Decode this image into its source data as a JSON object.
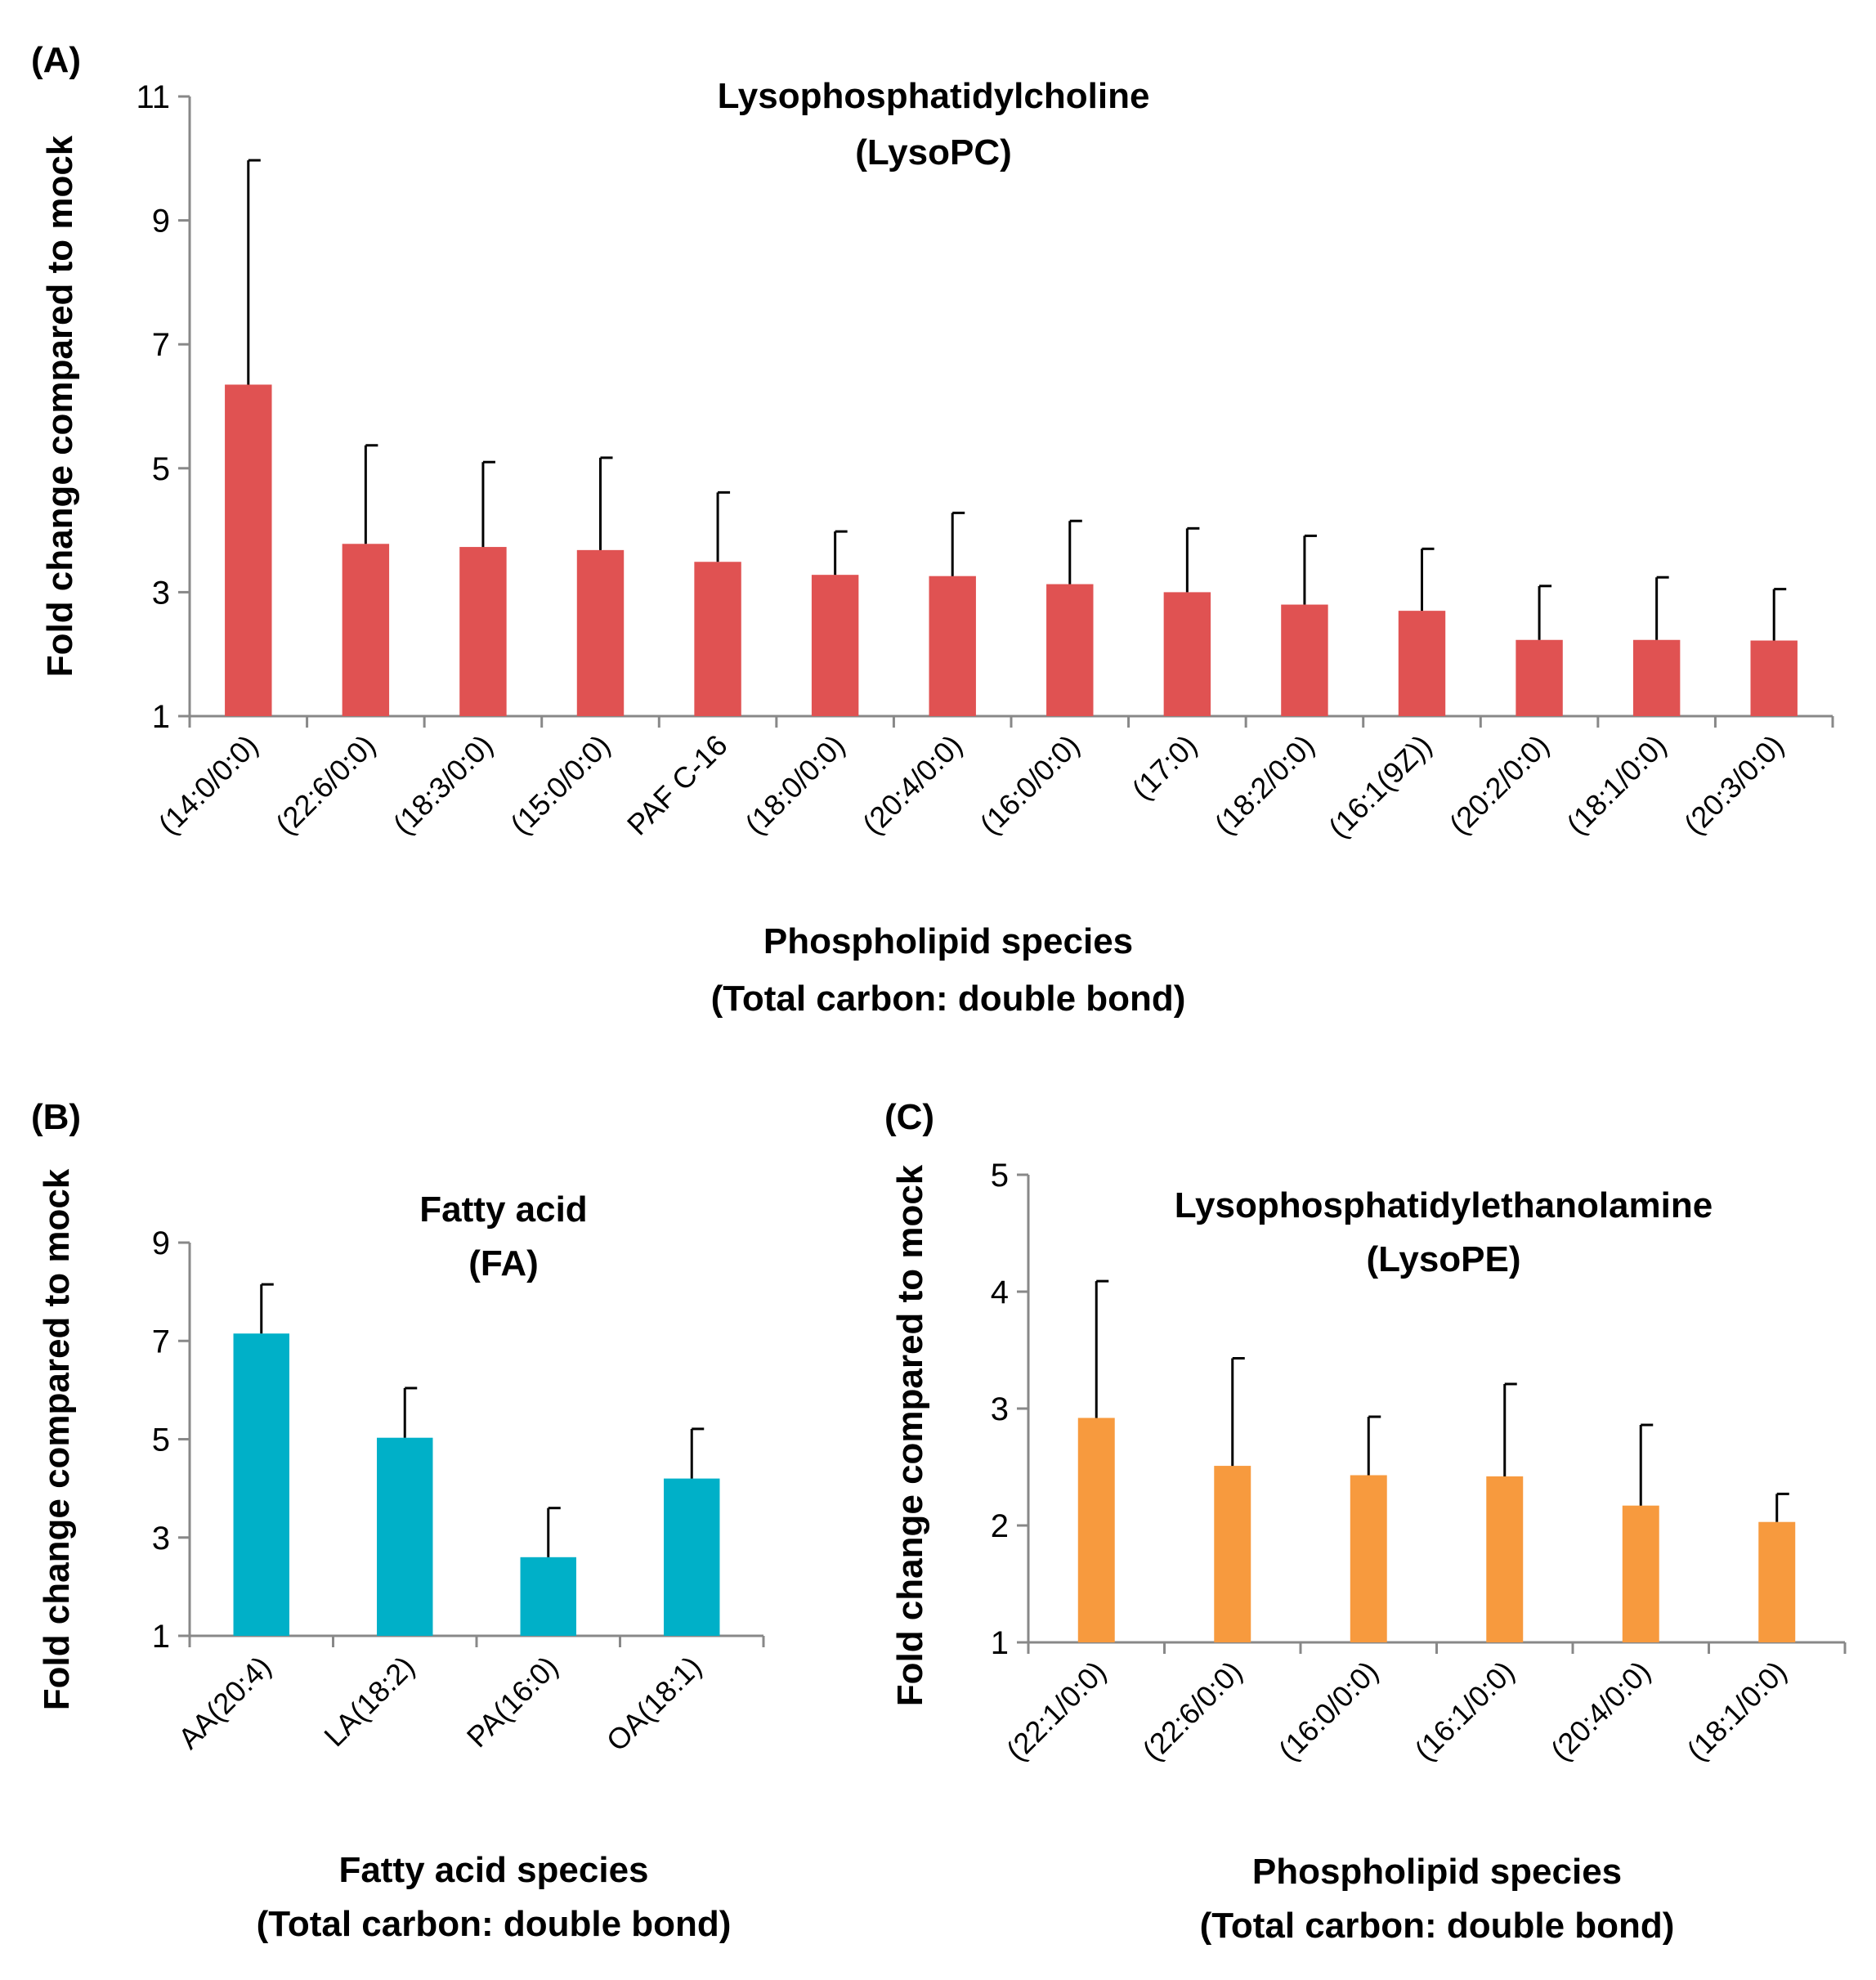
{
  "chart_data": [
    {
      "panel_label": "(A)",
      "type": "bar",
      "title": "Lysophosphatidylcholine",
      "subtitle": "(LysoPC)",
      "xlabel": "Phospholipid species",
      "xlabel_sub": "(Total carbon: double bond)",
      "ylabel": "Fold change compared to mock",
      "ylim": [
        1,
        11
      ],
      "yticks": [
        1,
        3,
        5,
        7,
        9,
        11
      ],
      "color": "#e05252",
      "categories": [
        "(14:0/0:0)",
        "(22:6/0:0)",
        "(18:3/0:0)",
        "(15:0/0:0)",
        "PAF C-16",
        "(18:0/0:0)",
        "(20:4/0:0)",
        "(16:0/0:0)",
        "(17:0)",
        "(18:2/0:0)",
        "(16:1(9Z))",
        "(20:2/0:0)",
        "(18:1/0:0)",
        "(20:3/0:0)"
      ],
      "values": [
        6.35,
        3.78,
        3.73,
        3.68,
        3.49,
        3.28,
        3.26,
        3.13,
        3.0,
        2.8,
        2.7,
        2.23,
        2.23,
        2.22
      ],
      "error_upper": [
        9.97,
        5.37,
        5.1,
        5.17,
        4.61,
        3.98,
        4.28,
        4.15,
        4.03,
        3.91,
        3.7,
        3.1,
        3.24,
        3.05
      ],
      "grid": false,
      "legend": "none"
    },
    {
      "panel_label": "(B)",
      "type": "bar",
      "title": "Fatty acid",
      "subtitle": "(FA)",
      "xlabel": "Fatty acid species",
      "xlabel_sub": "(Total carbon: double bond)",
      "ylabel": "Fold change compared to mock",
      "ylim": [
        1,
        9
      ],
      "yticks": [
        1,
        3,
        5,
        7,
        9
      ],
      "color": "#00b0c8",
      "categories": [
        "AA(20:4)",
        "LA(18:2)",
        "PA(16:0)",
        "OA(18:1)"
      ],
      "values": [
        7.15,
        5.03,
        2.6,
        4.2
      ],
      "error_upper": [
        8.15,
        6.04,
        3.6,
        5.21
      ],
      "grid": false,
      "legend": "none"
    },
    {
      "panel_label": "(C)",
      "type": "bar",
      "title": "Lysophosphatidylethanolamine",
      "subtitle": "(LysoPE)",
      "xlabel": "Phospholipid species",
      "xlabel_sub": "(Total carbon: double bond)",
      "ylabel": "Fold change compared to mock",
      "ylim": [
        1,
        5
      ],
      "yticks": [
        1,
        2,
        3,
        4,
        5
      ],
      "color": "#f79a3e",
      "categories": [
        "(22:1/0:0)",
        "(22:6/0:0)",
        "(16:0/0:0)",
        "(16:1/0:0)",
        "(20:4/0:0)",
        "(18:1/0:0)"
      ],
      "values": [
        2.92,
        2.51,
        2.43,
        2.42,
        2.17,
        2.03
      ],
      "error_upper": [
        4.09,
        3.43,
        2.93,
        3.21,
        2.86,
        2.27
      ],
      "grid": false,
      "legend": "none"
    }
  ]
}
